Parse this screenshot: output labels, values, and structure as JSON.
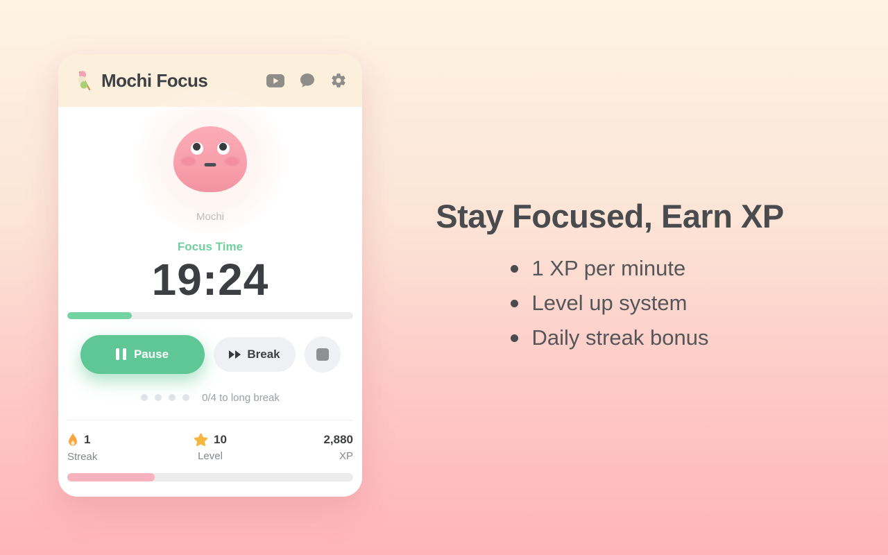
{
  "app": {
    "title": "Mochi Focus",
    "icons": {
      "logo": "dango-icon",
      "header": [
        "youtube-icon",
        "chat-icon",
        "settings-icon"
      ]
    }
  },
  "mochi": {
    "name": "Mochi"
  },
  "timer": {
    "session_label": "Focus Time",
    "time": "19:24",
    "progress_percent": 22.5
  },
  "controls": {
    "pause_label": "Pause",
    "break_label": "Break",
    "icons": {
      "pause": "pause-icon",
      "break": "fast-forward-icon",
      "stop": "stop-icon"
    }
  },
  "cycle": {
    "dots_total": 4,
    "dots_filled": 0,
    "label": "0/4 to long break"
  },
  "stats": {
    "streak": {
      "value": "1",
      "label": "Streak",
      "icon": "flame-icon"
    },
    "level": {
      "value": "10",
      "label": "Level",
      "icon": "star-icon"
    },
    "xp": {
      "value": "2,880",
      "label": "XP"
    },
    "xp_progress_percent": 30.5
  },
  "promo": {
    "heading": "Stay Focused, Earn XP",
    "bullets": [
      "1 XP per minute",
      "Level up system",
      "Daily streak bonus"
    ]
  },
  "colors": {
    "accent_green": "#5ec795",
    "accent_pink": "#f9b1be",
    "mochi_pink": "#f8a0ad",
    "header_bg": "#fcf0dd",
    "bg_top": "#fdf4e6",
    "bg_bottom": "#ffb4b9",
    "text_dark": "#3c3e41",
    "text_gray": "#84888d"
  }
}
